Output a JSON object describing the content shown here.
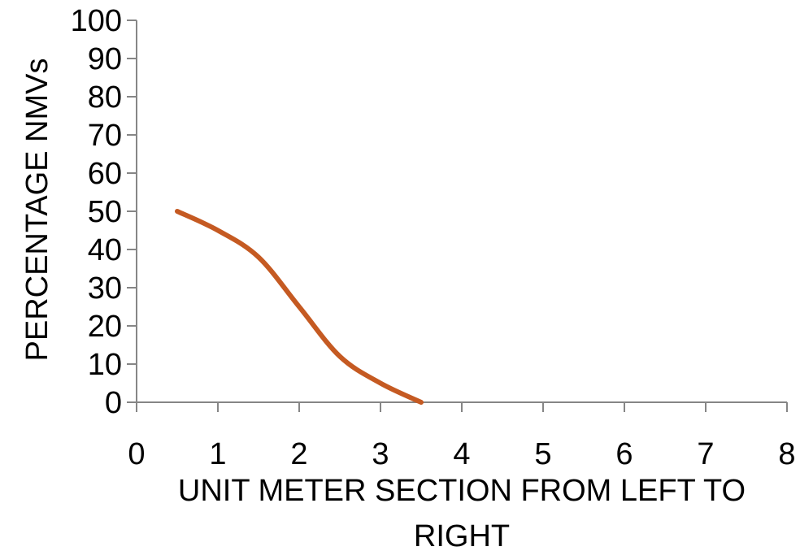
{
  "chart_data": {
    "type": "line",
    "xlabel_lines": [
      "UNIT METER SECTION FROM LEFT TO",
      "RIGHT"
    ],
    "ylabel": "PERCENTAGE NMVs",
    "xlim": [
      0,
      8
    ],
    "ylim": [
      0,
      100
    ],
    "x_ticks": [
      0,
      1,
      2,
      3,
      4,
      5,
      6,
      7,
      8
    ],
    "y_ticks": [
      0,
      10,
      20,
      30,
      40,
      50,
      60,
      70,
      80,
      90,
      100
    ],
    "grid": false,
    "smooth": true,
    "series": [
      {
        "color": "#C55A22",
        "points": [
          {
            "x": 0.5,
            "y": 50
          },
          {
            "x": 1.0,
            "y": 45
          },
          {
            "x": 1.5,
            "y": 38
          },
          {
            "x": 2.0,
            "y": 25
          },
          {
            "x": 2.5,
            "y": 12
          },
          {
            "x": 3.0,
            "y": 5
          },
          {
            "x": 3.5,
            "y": 0
          }
        ]
      }
    ],
    "axis_color": "#868686"
  }
}
